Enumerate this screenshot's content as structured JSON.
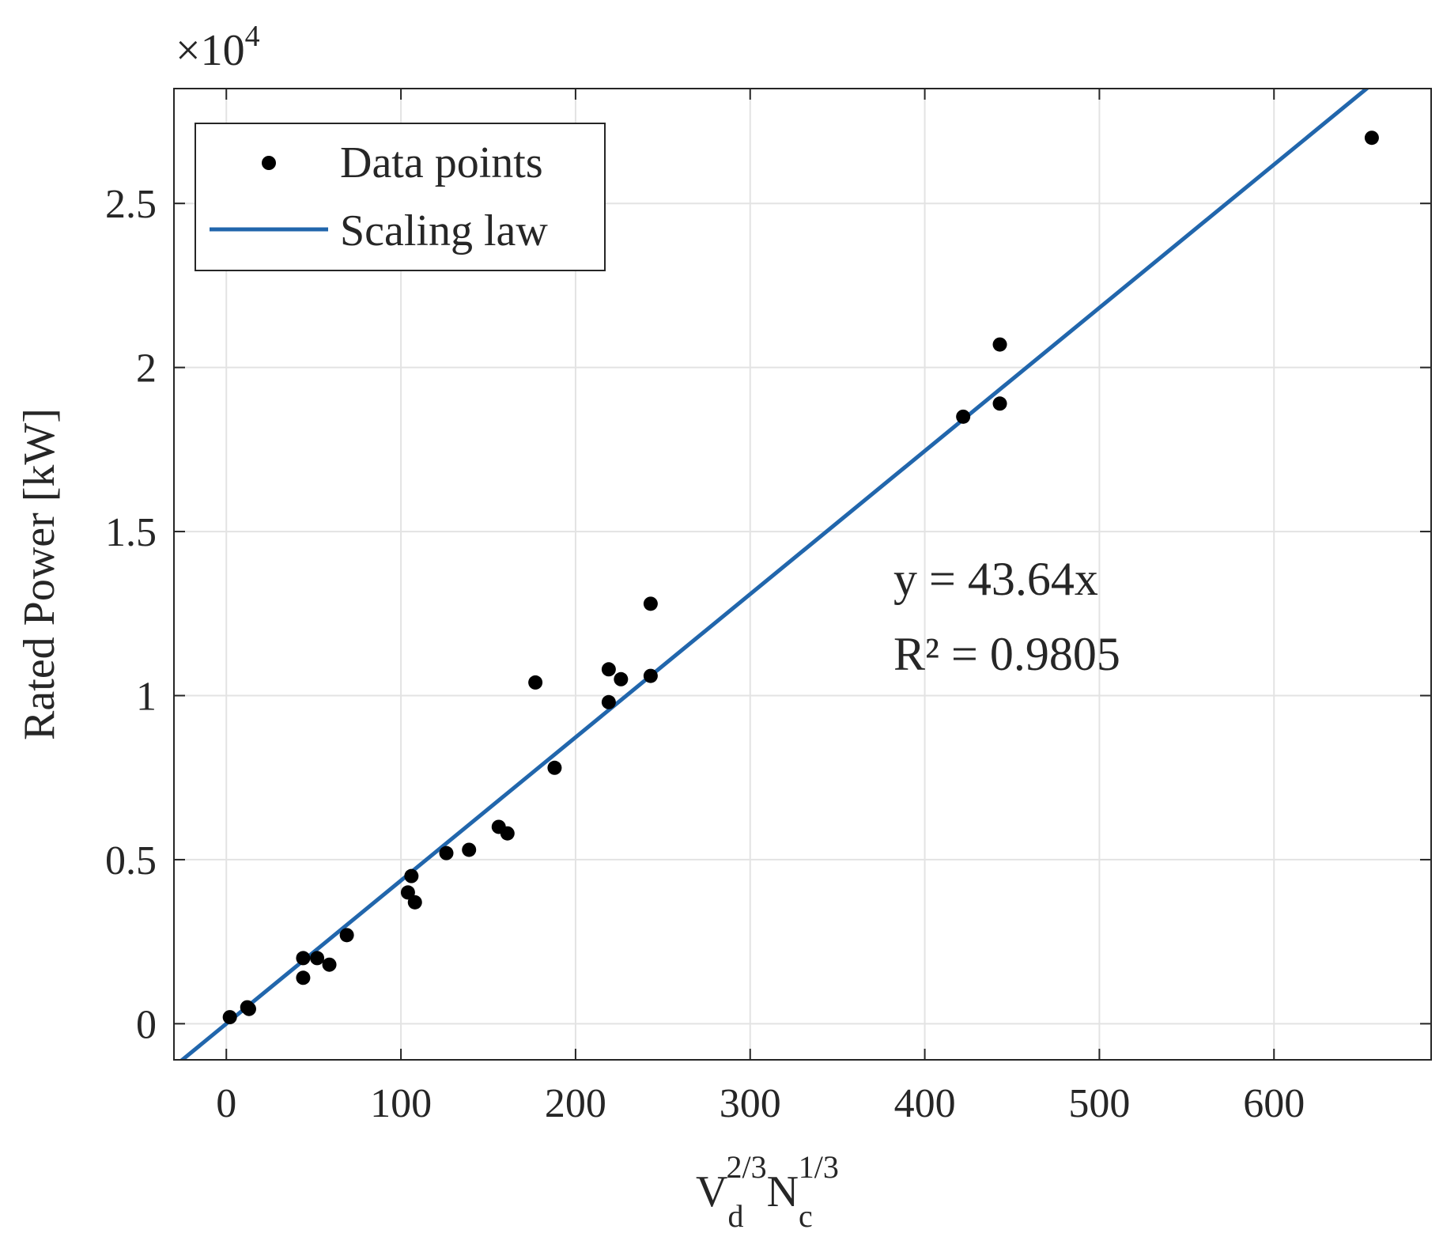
{
  "chart_data": {
    "type": "scatter",
    "title": "",
    "xlabel": {
      "base1": "V",
      "sub1": "d",
      "sup1": "2/3",
      "base2": "N",
      "sub2": "c",
      "sup2": "1/3"
    },
    "ylabel": "Rated Power [kW]",
    "y_multiplier": {
      "prefix": "×10",
      "exponent": "4"
    },
    "xlim": [
      -30,
      690
    ],
    "ylim": [
      -1100,
      28500
    ],
    "grid": true,
    "legend_position": "top-left",
    "x_ticks": [
      0,
      100,
      200,
      300,
      400,
      500,
      600
    ],
    "x_tick_labels": [
      "0",
      "100",
      "200",
      "300",
      "400",
      "500",
      "600"
    ],
    "y_ticks": [
      0,
      5000,
      10000,
      15000,
      20000,
      25000
    ],
    "y_tick_labels": [
      "0",
      "0.5",
      "1",
      "1.5",
      "2",
      "2.5"
    ],
    "series": [
      {
        "name": "Data points",
        "kind": "scatter",
        "color": "#000000",
        "points": [
          [
            2,
            200
          ],
          [
            12,
            500
          ],
          [
            13,
            450
          ],
          [
            44,
            2000
          ],
          [
            44,
            1400
          ],
          [
            52,
            2000
          ],
          [
            59,
            1800
          ],
          [
            69,
            2700
          ],
          [
            104,
            4000
          ],
          [
            106,
            4500
          ],
          [
            108,
            3700
          ],
          [
            126,
            5200
          ],
          [
            139,
            5300
          ],
          [
            156,
            6000
          ],
          [
            161,
            5800
          ],
          [
            177,
            10400
          ],
          [
            188,
            7800
          ],
          [
            219,
            10800
          ],
          [
            219,
            9800
          ],
          [
            226,
            10500
          ],
          [
            243,
            12800
          ],
          [
            243,
            10600
          ],
          [
            422,
            18500
          ],
          [
            443,
            20700
          ],
          [
            443,
            18900
          ],
          [
            656,
            27000
          ]
        ]
      },
      {
        "name": "Scaling law",
        "kind": "line",
        "color": "#2166ac",
        "slope": 43.64,
        "intercept": 0
      }
    ],
    "annotations": [
      {
        "text": "y = 43.64x",
        "at": [
          382,
          13000
        ]
      },
      {
        "text": "R² = 0.9805",
        "at": [
          382,
          10800
        ]
      }
    ]
  }
}
